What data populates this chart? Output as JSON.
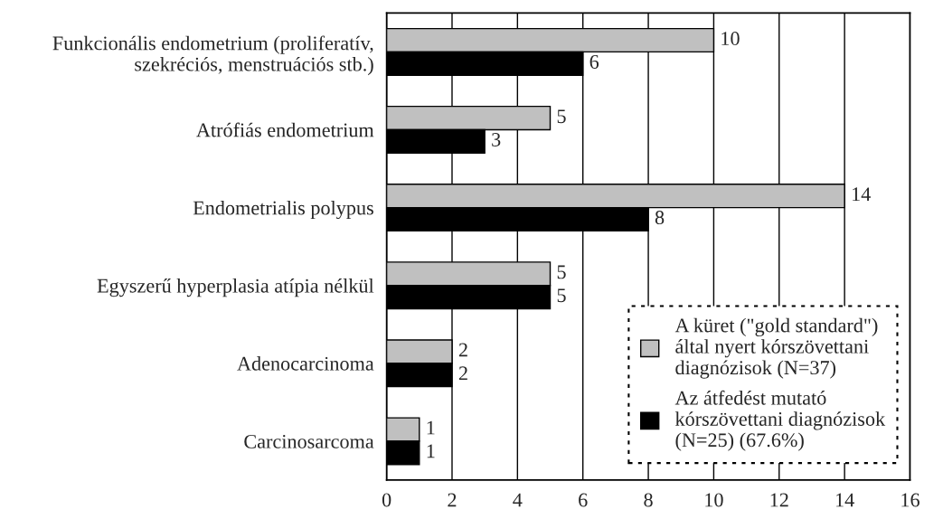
{
  "chart_data": {
    "type": "bar",
    "orientation": "horizontal",
    "categories": [
      "Funkcionális endometrium (proliferatív,\nszekréciós, menstruációs stb.)",
      "Atrófiás endometrium",
      "Endometrialis polypus",
      "Egyszerű hyperplasia atípia nélkül",
      "Adenocarcinoma",
      "Carcinosarcoma"
    ],
    "series": [
      {
        "name": "A küret (\"gold standard\")\náltal nyert kórszövettani\ndiagnózisok (N=37)",
        "color": "#c0c0c0",
        "values": [
          10,
          5,
          14,
          5,
          2,
          1
        ]
      },
      {
        "name": "Az átfedést mutató\nkórszövettani diagnózisok\n(N=25) (67.6%)",
        "color": "#000000",
        "values": [
          6,
          3,
          8,
          5,
          2,
          1
        ]
      }
    ],
    "xlim": [
      0,
      16
    ],
    "xticks": [
      0,
      2,
      4,
      6,
      8,
      10,
      12,
      14,
      16
    ],
    "grid": "x",
    "legend": "bottom right",
    "data_labels": true
  }
}
